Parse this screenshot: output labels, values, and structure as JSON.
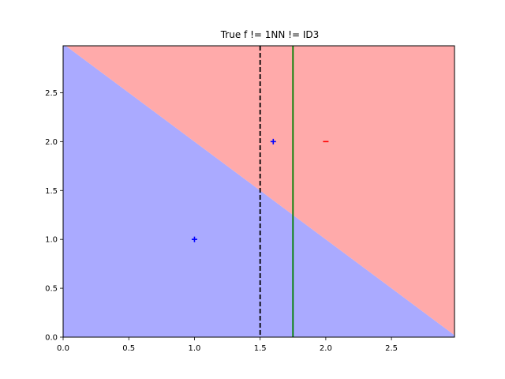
{
  "chart_data": {
    "type": "scatter",
    "title": "True f != 1NN != ID3",
    "xlabel": "",
    "ylabel": "",
    "xlim": [
      0.0,
      2.98
    ],
    "ylim": [
      0.0,
      2.98
    ],
    "xticks": [
      "0.0",
      "0.5",
      "1.0",
      "1.5",
      "2.0",
      "2.5"
    ],
    "xtick_values": [
      0.0,
      0.5,
      1.0,
      1.5,
      2.0,
      2.5
    ],
    "yticks": [
      "0.0",
      "0.5",
      "1.0",
      "1.5",
      "2.0",
      "2.5"
    ],
    "ytick_values": [
      0.0,
      0.5,
      1.0,
      1.5,
      2.0,
      2.5
    ],
    "grid": false,
    "regions": {
      "boundary": {
        "x1": 0.0,
        "y1": 3.0,
        "x2": 3.0,
        "y2": 0.0
      },
      "below_color": "#aaaaff",
      "above_color": "#ffaaaa"
    },
    "lines": [
      {
        "orientation": "vertical",
        "x": 1.5,
        "color": "#000000",
        "style": "dashed"
      },
      {
        "orientation": "vertical",
        "x": 1.75,
        "color": "#008000",
        "style": "solid"
      }
    ],
    "points": [
      {
        "x": 1.0,
        "y": 1.0,
        "marker": "+",
        "color": "#0000ff"
      },
      {
        "x": 1.6,
        "y": 2.0,
        "marker": "+",
        "color": "#0000ff"
      },
      {
        "x": 2.0,
        "y": 2.0,
        "marker": "-",
        "color": "#ff0000"
      }
    ]
  }
}
